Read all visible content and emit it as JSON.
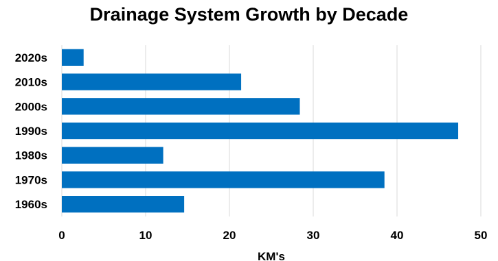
{
  "chart_data": {
    "type": "bar",
    "orientation": "horizontal",
    "title": "Drainage System Growth by Decade",
    "xlabel": "KM's",
    "ylabel": "",
    "categories": [
      "2020s",
      "2010s",
      "2000s",
      "1990s",
      "1980s",
      "1970s",
      "1960s"
    ],
    "values": [
      2.6,
      21.4,
      28.4,
      47.3,
      12.1,
      38.5,
      14.6
    ],
    "xlim": [
      0,
      50
    ],
    "x_ticks": [
      0,
      10,
      20,
      30,
      40,
      50
    ],
    "grid": true,
    "legend": "none",
    "bar_color": "#0070C0"
  }
}
